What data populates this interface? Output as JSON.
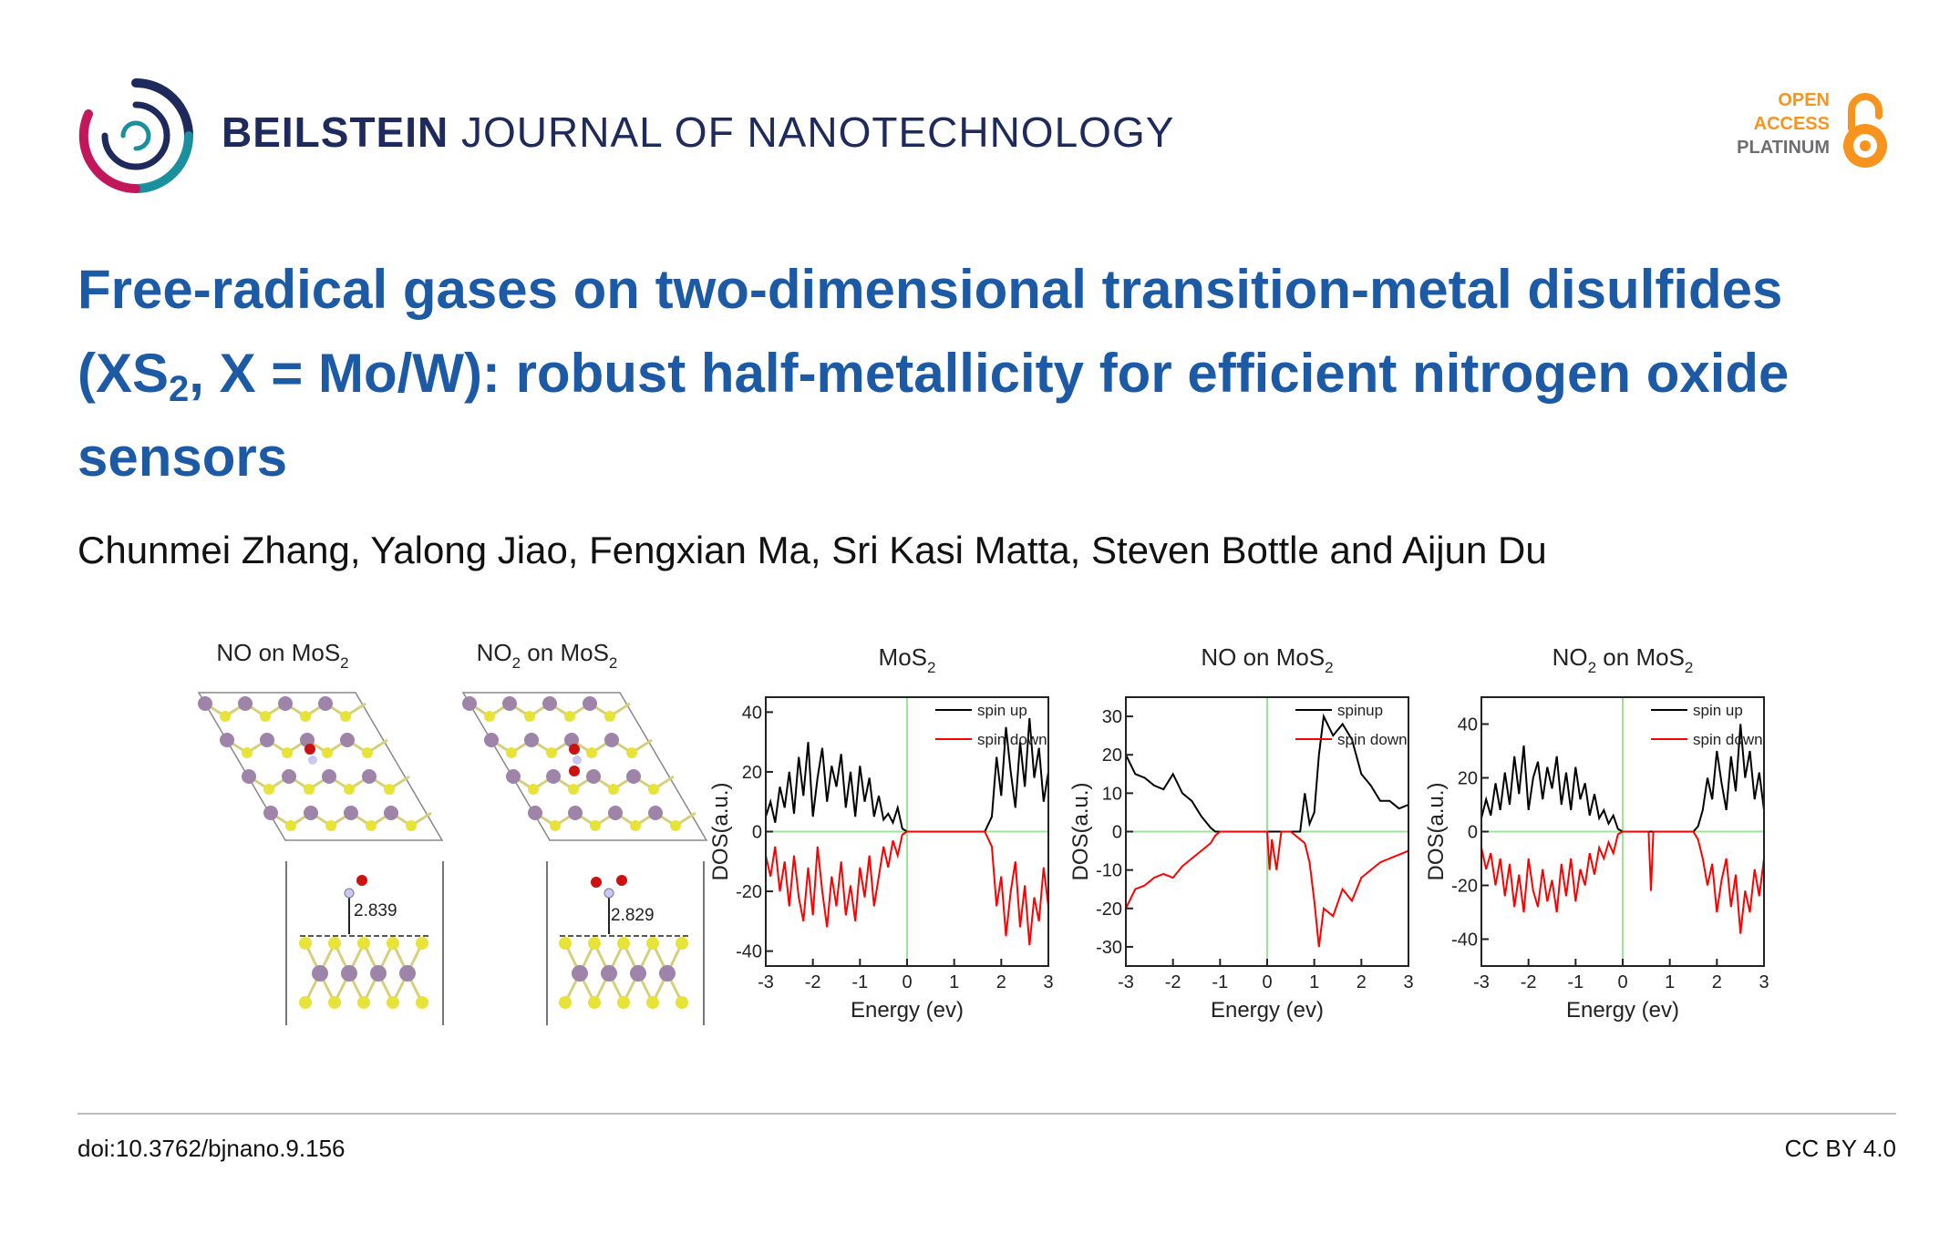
{
  "header": {
    "journal_bold": "BEILSTEIN",
    "journal_rest": " JOURNAL OF NANOTECHNOLOGY",
    "logo_icon": "beilstein-ring-logo",
    "open_access": {
      "line1": "OPEN",
      "line2": "ACCESS",
      "line3": "PLATINUM",
      "icon": "open-lock-icon",
      "color": "#f7941d"
    }
  },
  "article": {
    "title_part1": "Free-radical gases on two-dimensional transition-metal disulfides (XS",
    "title_sub": "2",
    "title_part2": ", X = Mo/W): robust half-metallicity for efficient nitrogen oxide sensors",
    "authors": "Chunmei Zhang, Yalong Jiao, Fengxian Ma, Sri Kasi Matta, Steven Bottle and Aijun Du"
  },
  "figure": {
    "structure_panels": [
      {
        "label": "NO on MoS",
        "sub": "2",
        "distance": "2.839"
      },
      {
        "label": "NO",
        "label_sub1": "2",
        "label_mid": " on MoS",
        "sub": "2",
        "distance": "2.829"
      }
    ],
    "colors": {
      "spin_up": "#000000",
      "spin_down": "#ff0000",
      "reference_lines": "#9be59b",
      "mo_atom": "#9e84a8",
      "s_atom": "#e8e337",
      "n_atom": "#c8c8f0",
      "o_atom": "#cc1111"
    },
    "chart_data": [
      {
        "type": "line",
        "title": "MoS",
        "title_sub": "2",
        "xlabel": "Energy (ev)",
        "ylabel": "DOS(a.u.)",
        "xlim": [
          -3,
          3
        ],
        "ylim": [
          -45,
          45
        ],
        "xticks": [
          "-3",
          "-2",
          "-1",
          "0",
          "1",
          "2",
          "3"
        ],
        "yticks": [
          {
            "v": 40,
            "t": "40"
          },
          {
            "v": 20,
            "t": "20"
          },
          {
            "v": 0,
            "t": "0"
          },
          {
            "v": -20,
            "t": "-20"
          },
          {
            "v": -40,
            "t": "-40"
          }
        ],
        "legend": {
          "up": "spin up",
          "down": "spin down"
        },
        "series": [
          {
            "name": "spin up",
            "x": [
              -3,
              -2.9,
              -2.8,
              -2.7,
              -2.6,
              -2.5,
              -2.4,
              -2.3,
              -2.2,
              -2.1,
              -2,
              -1.9,
              -1.8,
              -1.7,
              -1.6,
              -1.5,
              -1.4,
              -1.3,
              -1.2,
              -1.1,
              -1,
              -0.9,
              -0.8,
              -0.7,
              -0.6,
              -0.5,
              -0.4,
              -0.3,
              -0.2,
              -0.1,
              0,
              0.5,
              1,
              1.5,
              1.65,
              1.8,
              1.9,
              2,
              2.1,
              2.2,
              2.3,
              2.4,
              2.5,
              2.6,
              2.7,
              2.8,
              2.9,
              3
            ],
            "y": [
              5,
              10,
              3,
              15,
              8,
              20,
              6,
              25,
              12,
              30,
              5,
              18,
              28,
              10,
              22,
              15,
              26,
              8,
              20,
              5,
              22,
              10,
              18,
              5,
              12,
              4,
              6,
              3,
              8,
              1,
              0,
              0,
              0,
              0,
              0,
              5,
              25,
              12,
              35,
              20,
              8,
              30,
              15,
              38,
              18,
              28,
              10,
              20
            ]
          },
          {
            "name": "spin down",
            "x": [
              -3,
              -2.9,
              -2.8,
              -2.7,
              -2.6,
              -2.5,
              -2.4,
              -2.3,
              -2.2,
              -2.1,
              -2,
              -1.9,
              -1.8,
              -1.7,
              -1.6,
              -1.5,
              -1.4,
              -1.3,
              -1.2,
              -1.1,
              -1,
              -0.9,
              -0.8,
              -0.7,
              -0.6,
              -0.5,
              -0.4,
              -0.3,
              -0.2,
              -0.1,
              0,
              0.5,
              1,
              1.5,
              1.65,
              1.8,
              1.9,
              2,
              2.1,
              2.2,
              2.3,
              2.4,
              2.5,
              2.6,
              2.7,
              2.8,
              2.9,
              3
            ],
            "y": [
              -8,
              -15,
              -5,
              -20,
              -10,
              -25,
              -8,
              -22,
              -30,
              -12,
              -28,
              -5,
              -20,
              -32,
              -15,
              -25,
              -10,
              -28,
              -18,
              -30,
              -12,
              -22,
              -8,
              -25,
              -15,
              -5,
              -12,
              -3,
              -8,
              -1,
              0,
              0,
              0,
              0,
              0,
              -5,
              -25,
              -15,
              -35,
              -20,
              -10,
              -32,
              -18,
              -38,
              -22,
              -30,
              -12,
              -25
            ]
          }
        ]
      },
      {
        "type": "line",
        "title": "NO on MoS",
        "title_sub": "2",
        "xlabel": "Energy (ev)",
        "ylabel": "DOS(a.u.)",
        "xlim": [
          -3,
          3
        ],
        "ylim": [
          -35,
          35
        ],
        "xticks": [
          "-3",
          "-2",
          "-1",
          "0",
          "1",
          "2",
          "3"
        ],
        "yticks": [
          {
            "v": 30,
            "t": "30"
          },
          {
            "v": 20,
            "t": "20"
          },
          {
            "v": 10,
            "t": "10"
          },
          {
            "v": 0,
            "t": "0"
          },
          {
            "v": -10,
            "t": "-10"
          },
          {
            "v": -20,
            "t": "-20"
          },
          {
            "v": -30,
            "t": "-30"
          }
        ],
        "legend": {
          "up": "spinup",
          "down": "spin down"
        },
        "series": [
          {
            "name": "spinup",
            "x": [
              -3,
              -2.8,
              -2.6,
              -2.4,
              -2.2,
              -2,
              -1.8,
              -1.6,
              -1.4,
              -1.2,
              -1.1,
              -1,
              -0.5,
              0,
              0.1,
              0.2,
              0.3,
              0.5,
              0.6,
              0.7,
              0.8,
              0.9,
              1,
              1.1,
              1.2,
              1.4,
              1.6,
              1.8,
              2,
              2.2,
              2.4,
              2.6,
              2.8,
              3
            ],
            "y": [
              20,
              15,
              14,
              12,
              11,
              15,
              10,
              8,
              4,
              1,
              0,
              0,
              0,
              0,
              0,
              0,
              0,
              0,
              0,
              0,
              10,
              2,
              5,
              20,
              30,
              25,
              28,
              24,
              15,
              12,
              8,
              8,
              6,
              7
            ]
          },
          {
            "name": "spin down",
            "x": [
              -3,
              -2.8,
              -2.6,
              -2.4,
              -2.2,
              -2,
              -1.8,
              -1.6,
              -1.4,
              -1.2,
              -1.1,
              -1,
              -0.5,
              0,
              0.05,
              0.1,
              0.2,
              0.3,
              0.5,
              0.8,
              0.9,
              1,
              1.1,
              1.2,
              1.4,
              1.6,
              1.8,
              2,
              2.2,
              2.4,
              2.6,
              2.8,
              3
            ],
            "y": [
              -20,
              -15,
              -14,
              -12,
              -11,
              -12,
              -9,
              -7,
              -5,
              -3,
              -1,
              0,
              0,
              0,
              -10,
              -2,
              -10,
              0,
              0,
              -3,
              -8,
              -18,
              -30,
              -20,
              -22,
              -15,
              -18,
              -12,
              -10,
              -8,
              -7,
              -6,
              -5
            ]
          }
        ]
      },
      {
        "type": "line",
        "title": "NO",
        "title_sub1": "2",
        "title_mid": " on MoS",
        "title_sub": "2",
        "xlabel": "Energy (ev)",
        "ylabel": "DOS(a.u.)",
        "xlim": [
          -3,
          3
        ],
        "ylim": [
          -50,
          50
        ],
        "xticks": [
          "-3",
          "-2",
          "-1",
          "0",
          "1",
          "2",
          "3"
        ],
        "yticks": [
          {
            "v": 40,
            "t": "40"
          },
          {
            "v": 20,
            "t": "20"
          },
          {
            "v": 0,
            "t": "0"
          },
          {
            "v": -20,
            "t": "-20"
          },
          {
            "v": -40,
            "t": "-40"
          }
        ],
        "legend": {
          "up": "spin up",
          "down": "spin down"
        },
        "series": [
          {
            "name": "spin up",
            "x": [
              -3,
              -2.9,
              -2.8,
              -2.7,
              -2.6,
              -2.5,
              -2.4,
              -2.3,
              -2.2,
              -2.1,
              -2,
              -1.9,
              -1.8,
              -1.7,
              -1.6,
              -1.5,
              -1.4,
              -1.3,
              -1.2,
              -1.1,
              -1,
              -0.9,
              -0.8,
              -0.7,
              -0.6,
              -0.5,
              -0.4,
              -0.3,
              -0.2,
              -0.1,
              0,
              0.5,
              1,
              1.5,
              1.6,
              1.7,
              1.8,
              1.9,
              2,
              2.1,
              2.2,
              2.3,
              2.4,
              2.5,
              2.6,
              2.7,
              2.8,
              2.9,
              3
            ],
            "y": [
              5,
              12,
              6,
              18,
              8,
              22,
              10,
              28,
              14,
              32,
              8,
              20,
              26,
              12,
              24,
              16,
              28,
              10,
              22,
              8,
              24,
              12,
              18,
              6,
              14,
              5,
              8,
              3,
              6,
              1,
              0,
              0,
              0,
              0,
              2,
              8,
              20,
              12,
              30,
              18,
              8,
              28,
              15,
              40,
              20,
              30,
              12,
              22,
              8
            ]
          },
          {
            "name": "spin down",
            "x": [
              -3,
              -2.9,
              -2.8,
              -2.7,
              -2.6,
              -2.5,
              -2.4,
              -2.3,
              -2.2,
              -2.1,
              -2,
              -1.9,
              -1.8,
              -1.7,
              -1.6,
              -1.5,
              -1.4,
              -1.3,
              -1.2,
              -1.1,
              -1,
              -0.9,
              -0.8,
              -0.7,
              -0.6,
              -0.5,
              -0.4,
              -0.3,
              -0.2,
              -0.1,
              0,
              0.3,
              0.55,
              0.6,
              0.65,
              1,
              1.5,
              1.6,
              1.7,
              1.8,
              1.9,
              2,
              2.1,
              2.2,
              2.3,
              2.4,
              2.5,
              2.6,
              2.7,
              2.8,
              2.9,
              3
            ],
            "y": [
              -6,
              -14,
              -8,
              -20,
              -10,
              -24,
              -12,
              -28,
              -16,
              -30,
              -10,
              -22,
              -28,
              -14,
              -26,
              -18,
              -30,
              -12,
              -24,
              -10,
              -26,
              -14,
              -20,
              -8,
              -16,
              -6,
              -10,
              -4,
              -8,
              -1,
              0,
              0,
              0,
              -22,
              0,
              0,
              0,
              -3,
              -10,
              -20,
              -12,
              -30,
              -18,
              -10,
              -28,
              -16,
              -38,
              -22,
              -30,
              -14,
              -24,
              -10
            ]
          }
        ]
      }
    ]
  },
  "footer": {
    "doi": "doi:10.3762/bjnano.9.156",
    "license": "CC BY 4.0"
  }
}
